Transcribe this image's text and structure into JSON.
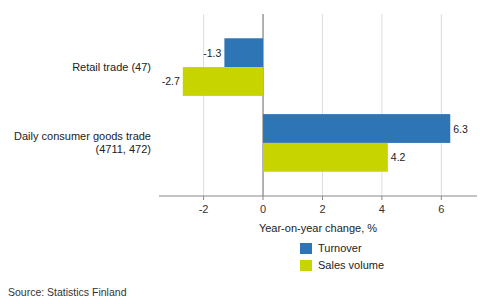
{
  "chart_data": {
    "type": "bar",
    "orientation": "horizontal",
    "categories": [
      "Daily consumer goods trade (4711, 472)",
      "Retail trade (47)"
    ],
    "series": [
      {
        "name": "Turnover",
        "color": "#2E75B6",
        "values": [
          6.3,
          -1.3
        ]
      },
      {
        "name": "Sales volume",
        "color": "#C8D400",
        "values": [
          4.2,
          -2.7
        ]
      }
    ],
    "xlabel": "Year-on-year change, %",
    "xlim": [
      -3.5,
      7.2
    ],
    "xticks": [
      -2,
      0,
      2,
      4,
      6
    ],
    "grid": true,
    "legend": "bottom",
    "data_labels": true,
    "annotations": [
      "Source: Statistics Finland"
    ]
  }
}
